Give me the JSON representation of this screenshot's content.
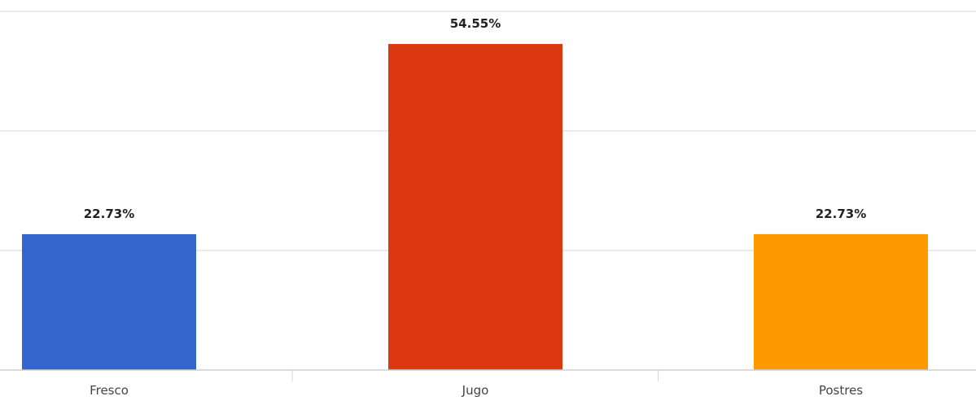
{
  "chart_data": {
    "type": "bar",
    "title": "",
    "xlabel": "",
    "ylabel": "",
    "categories": [
      "Fresco",
      "Jugo",
      "Postres"
    ],
    "values": [
      22.73,
      54.55,
      22.73
    ],
    "data_labels": [
      "22.73%",
      "54.55%",
      "22.73%"
    ],
    "colors": [
      "#3366cc",
      "#dc3912",
      "#ff9900"
    ],
    "ylim": [
      0,
      60
    ],
    "gridlines": [
      20,
      40,
      60
    ],
    "grid": true,
    "legend": "none"
  }
}
